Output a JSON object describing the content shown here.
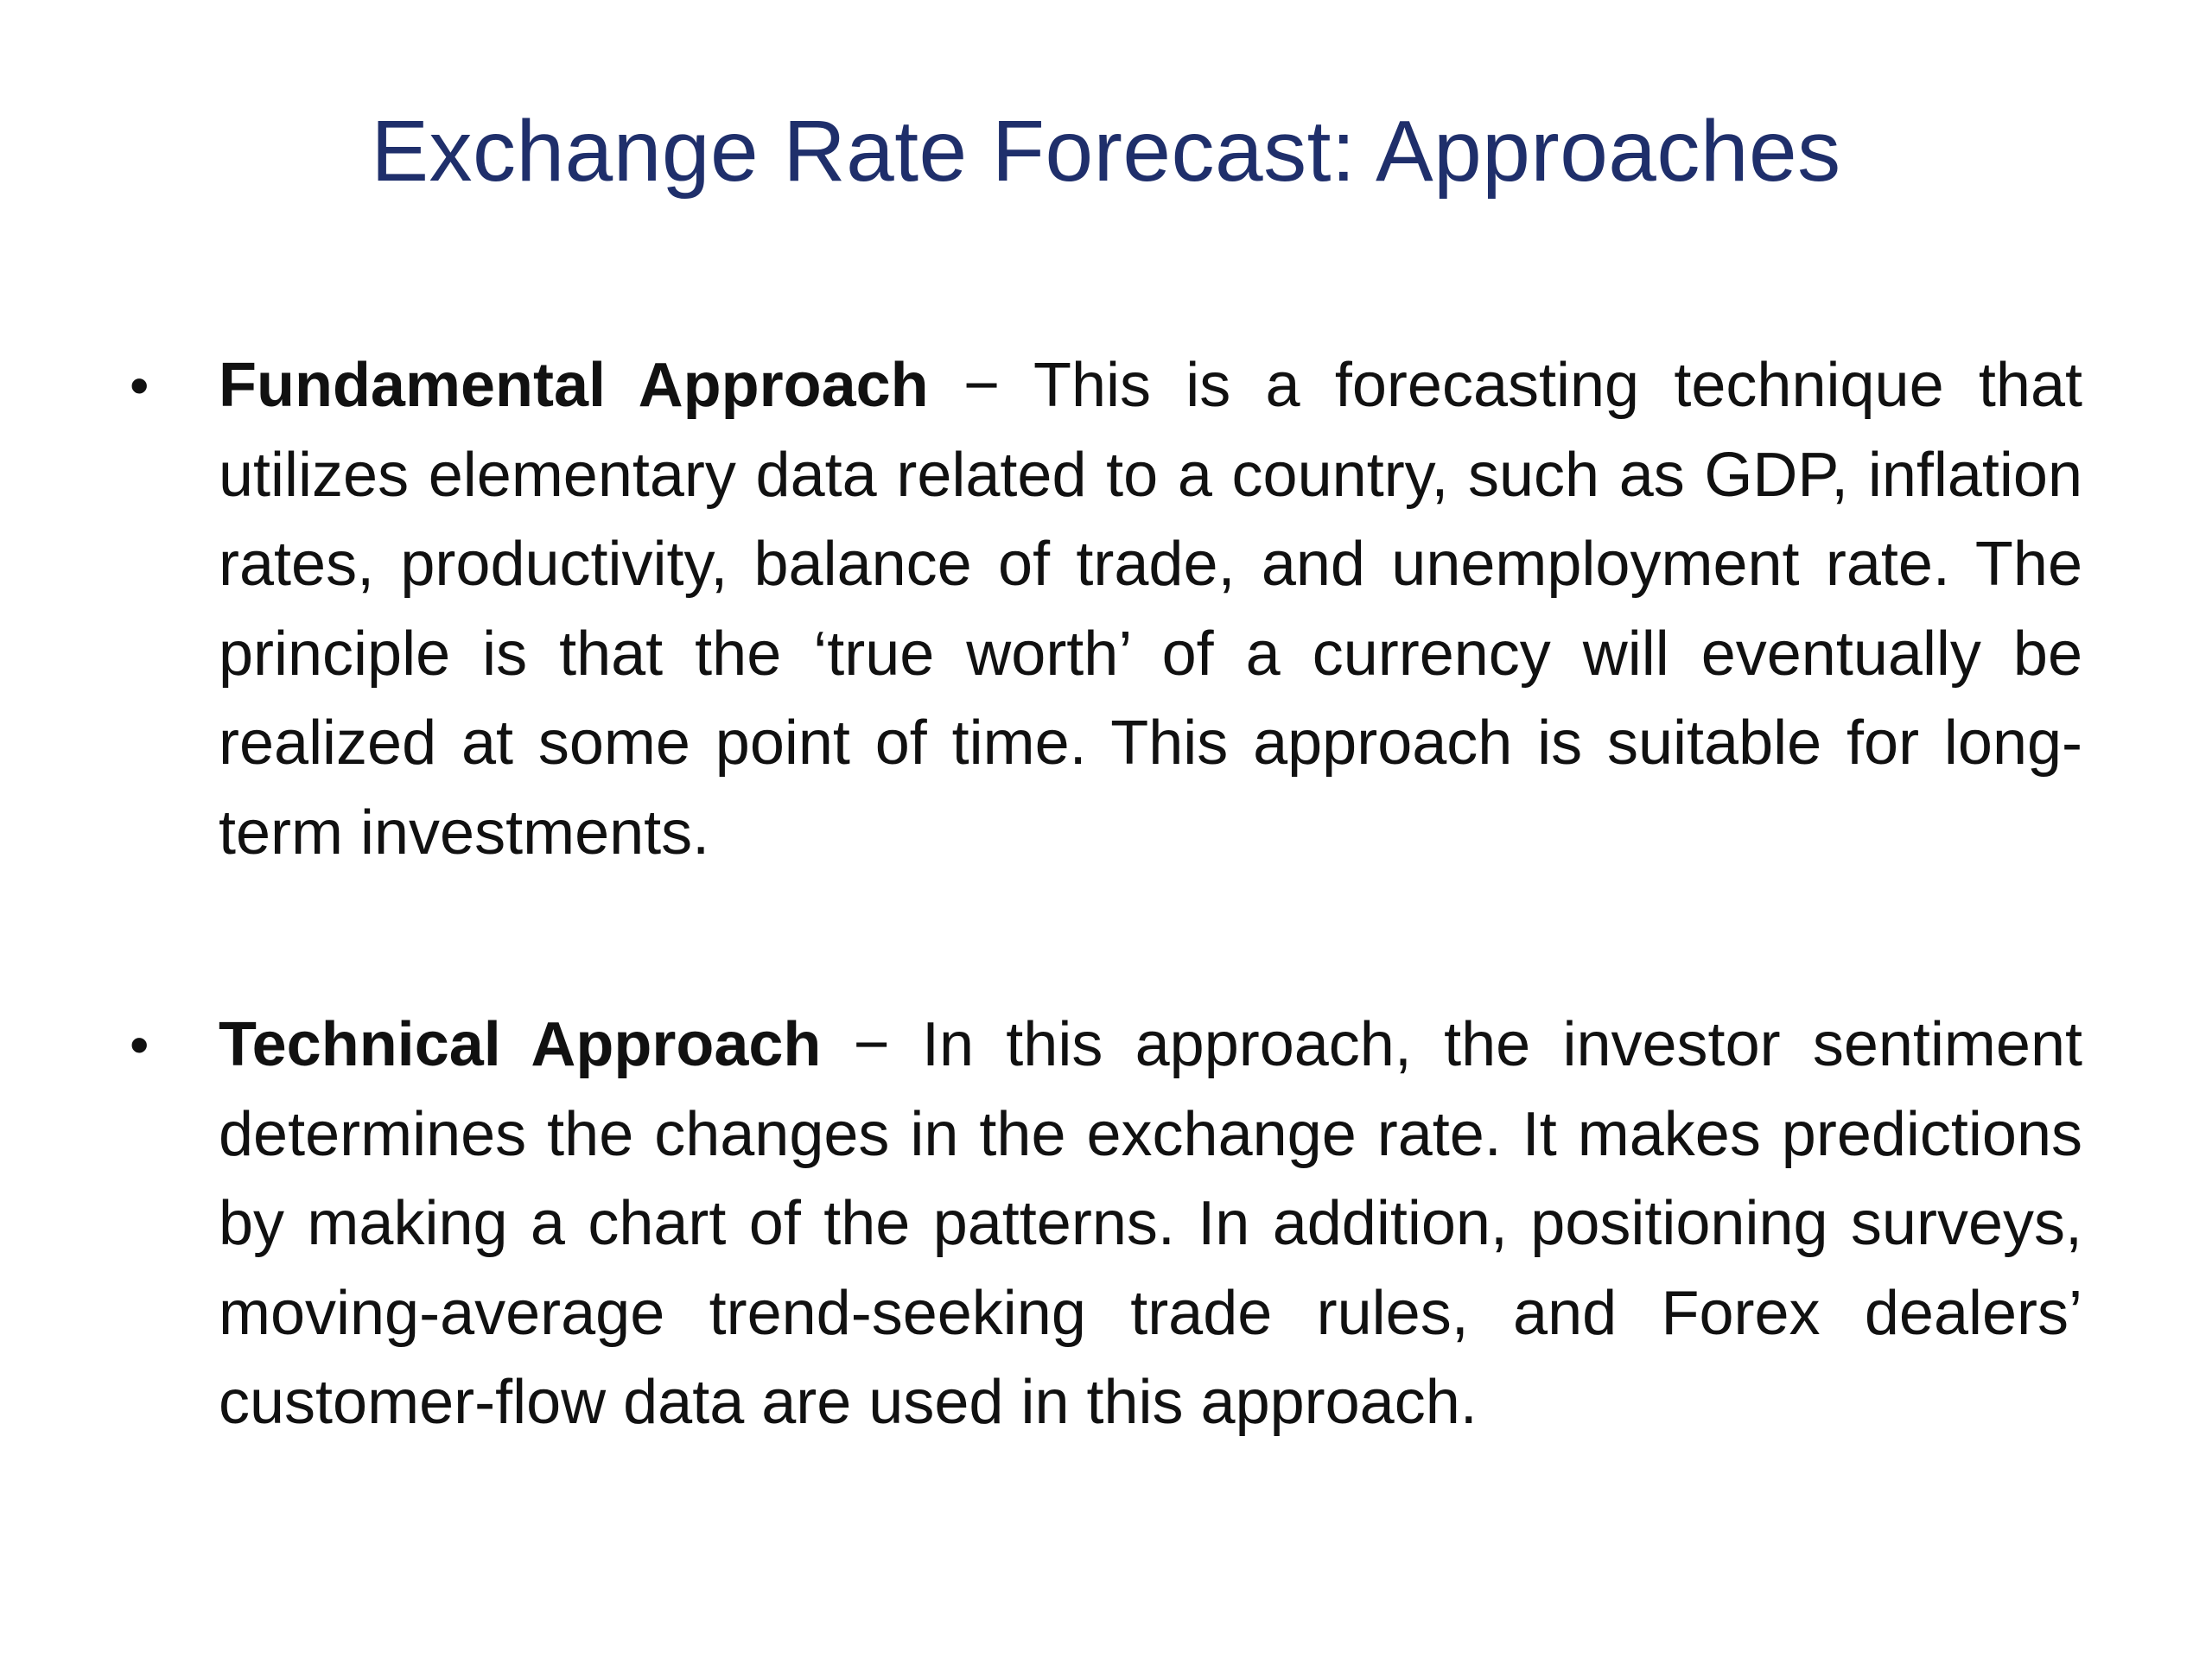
{
  "slide": {
    "title": "Exchange Rate Forecast: Approaches",
    "bullets": [
      {
        "marker": "•",
        "term": "Fundamental Approach",
        "text": " − This is a forecasting technique that utilizes elementary data related to a country, such as GDP, inflation rates, productivity, balance of trade, and unemployment rate. The principle is that the ‘true worth’ of a currency will eventually be realized at some point of time. This approach is suitable for long-term investments."
      },
      {
        "marker": "•",
        "term": "Technical Approach",
        "text": " − In this approach, the investor sentiment determines the changes in the exchange rate. It makes predictions by making a chart of the patterns. In addition, positioning surveys, moving-average trend-seeking trade rules, and Forex dealers’ customer-flow data are used in this approach."
      }
    ]
  },
  "colors": {
    "title": "#1f2f6b",
    "body_text": "#111111",
    "background": "#ffffff"
  }
}
